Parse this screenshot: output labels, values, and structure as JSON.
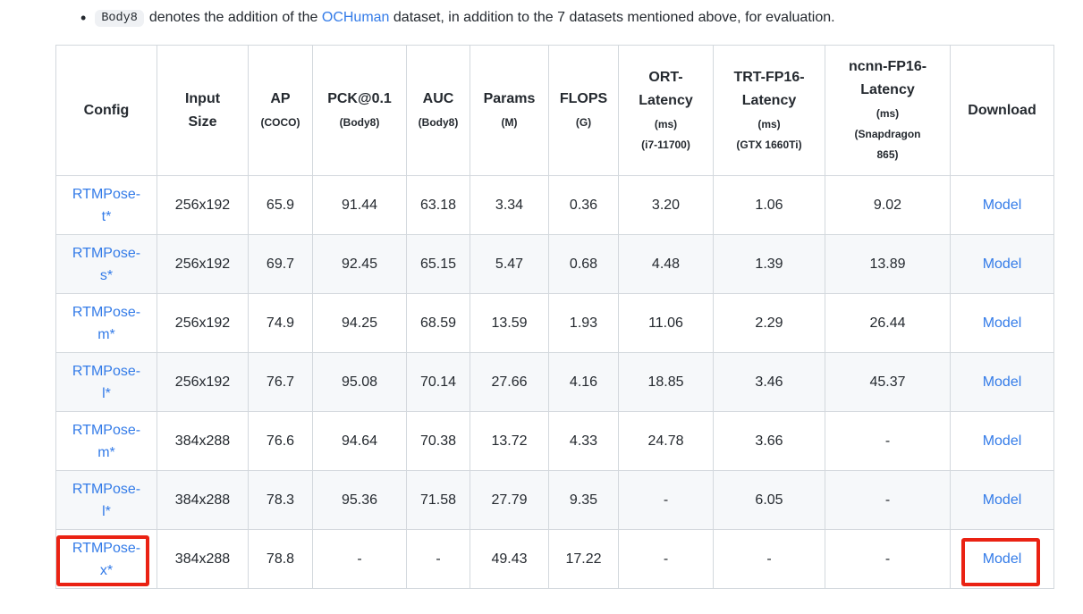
{
  "note": {
    "bullet": "•",
    "code": "Body8",
    "text_before_link": "denotes the addition of the ",
    "link": "OCHuman",
    "text_after_link": " dataset, in addition to the 7 datasets mentioned above, for evaluation."
  },
  "colors": {
    "link_blue": "#337be8",
    "border_gray": "#d3d8dd",
    "zebra_row": "#f6f8fa",
    "annotation_red": "#ea2213",
    "text": "#24292f",
    "code_badge_bg": "#eff1f4"
  },
  "table": {
    "columns": [
      {
        "id": "config",
        "label_lines": [
          "Config"
        ],
        "sub_lines": []
      },
      {
        "id": "input",
        "label_lines": [
          "Input",
          "Size"
        ],
        "sub_lines": []
      },
      {
        "id": "ap",
        "label_lines": [
          "AP"
        ],
        "sub_lines": [
          "(COCO)"
        ]
      },
      {
        "id": "pck",
        "label_lines": [
          "PCK@0.1"
        ],
        "sub_lines": [
          "(Body8)"
        ]
      },
      {
        "id": "auc",
        "label_lines": [
          "AUC"
        ],
        "sub_lines": [
          "(Body8)"
        ]
      },
      {
        "id": "params",
        "label_lines": [
          "Params"
        ],
        "sub_lines": [
          "(M)"
        ]
      },
      {
        "id": "flops",
        "label_lines": [
          "FLOPS"
        ],
        "sub_lines": [
          "(G)"
        ]
      },
      {
        "id": "ort",
        "label_lines": [
          "ORT-",
          "Latency"
        ],
        "sub_lines": [
          "(ms)",
          "(i7-11700)"
        ]
      },
      {
        "id": "trt",
        "label_lines": [
          "TRT-FP16-",
          "Latency"
        ],
        "sub_lines": [
          "(ms)",
          "(GTX 1660Ti)"
        ]
      },
      {
        "id": "ncnn",
        "label_lines": [
          "ncnn-FP16-",
          "Latency"
        ],
        "sub_lines": [
          "(ms)",
          "(Snapdragon",
          "865)"
        ]
      },
      {
        "id": "download",
        "label_lines": [
          "Download"
        ],
        "sub_lines": []
      }
    ],
    "rows": [
      {
        "config_lines": [
          "RTMPose-",
          "t*"
        ],
        "values": [
          "256x192",
          "65.9",
          "91.44",
          "63.18",
          "3.34",
          "0.36",
          "3.20",
          "1.06",
          "9.02"
        ],
        "download": "Model",
        "highlighted": []
      },
      {
        "config_lines": [
          "RTMPose-",
          "s*"
        ],
        "values": [
          "256x192",
          "69.7",
          "92.45",
          "65.15",
          "5.47",
          "0.68",
          "4.48",
          "1.39",
          "13.89"
        ],
        "download": "Model",
        "highlighted": []
      },
      {
        "config_lines": [
          "RTMPose-",
          "m*"
        ],
        "values": [
          "256x192",
          "74.9",
          "94.25",
          "68.59",
          "13.59",
          "1.93",
          "11.06",
          "2.29",
          "26.44"
        ],
        "download": "Model",
        "highlighted": []
      },
      {
        "config_lines": [
          "RTMPose-",
          "l*"
        ],
        "values": [
          "256x192",
          "76.7",
          "95.08",
          "70.14",
          "27.66",
          "4.16",
          "18.85",
          "3.46",
          "45.37"
        ],
        "download": "Model",
        "highlighted": []
      },
      {
        "config_lines": [
          "RTMPose-",
          "m*"
        ],
        "values": [
          "384x288",
          "76.6",
          "94.64",
          "70.38",
          "13.72",
          "4.33",
          "24.78",
          "3.66",
          "-"
        ],
        "download": "Model",
        "highlighted": []
      },
      {
        "config_lines": [
          "RTMPose-",
          "l*"
        ],
        "values": [
          "384x288",
          "78.3",
          "95.36",
          "71.58",
          "27.79",
          "9.35",
          "-",
          "6.05",
          "-"
        ],
        "download": "Model",
        "highlighted": []
      },
      {
        "config_lines": [
          "RTMPose-",
          "x*"
        ],
        "values": [
          "384x288",
          "78.8",
          "-",
          "-",
          "49.43",
          "17.22",
          "-",
          "-",
          "-"
        ],
        "download": "Model",
        "highlighted": [
          "config",
          "download"
        ]
      }
    ]
  }
}
